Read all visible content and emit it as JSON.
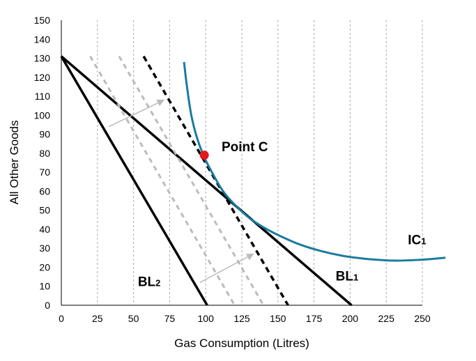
{
  "chart_data": {
    "type": "line",
    "title": "",
    "xlabel": "Gas Consumption (Litres)",
    "ylabel": "All Other Goods",
    "xlim": [
      0,
      250
    ],
    "ylim": [
      0,
      150
    ],
    "xticks": [
      0,
      25,
      50,
      75,
      100,
      125,
      150,
      175,
      200,
      225,
      250
    ],
    "yticks": [
      0,
      10,
      20,
      30,
      40,
      50,
      60,
      70,
      80,
      90,
      100,
      110,
      120,
      130,
      140,
      150
    ],
    "grid": "vertical dashed",
    "legend": "none",
    "lines": [
      {
        "id": "bl1",
        "points": [
          [
            0,
            131
          ],
          [
            201,
            0
          ]
        ],
        "style": "solid",
        "color": "#000000"
      },
      {
        "id": "bl2",
        "points": [
          [
            0,
            131
          ],
          [
            101,
            0
          ]
        ],
        "style": "solid",
        "color": "#000000"
      },
      {
        "id": "shift1",
        "points": [
          [
            20,
            131
          ],
          [
            120,
            0
          ]
        ],
        "style": "dashed",
        "color": "#bbbbbb"
      },
      {
        "id": "shift2",
        "points": [
          [
            40,
            131
          ],
          [
            140,
            0
          ]
        ],
        "style": "dashed",
        "color": "#bbbbbb"
      },
      {
        "id": "tangent",
        "points": [
          [
            57,
            131
          ],
          [
            157,
            0
          ]
        ],
        "style": "dashed",
        "color": "#000000"
      }
    ],
    "curves": [
      {
        "id": "ic1",
        "color": "#1a7b9e",
        "points": [
          [
            85,
            128
          ],
          [
            87,
            115
          ],
          [
            90,
            100
          ],
          [
            94,
            88
          ],
          [
            99,
            78
          ],
          [
            105,
            69
          ],
          [
            112,
            60
          ],
          [
            120,
            53
          ],
          [
            130,
            46
          ],
          [
            140,
            41
          ],
          [
            150,
            37
          ],
          [
            165,
            32
          ],
          [
            180,
            28.5
          ],
          [
            195,
            26
          ],
          [
            210,
            24.5
          ],
          [
            230,
            23.5
          ],
          [
            250,
            24
          ],
          [
            266,
            25
          ]
        ]
      }
    ],
    "arrows": [
      {
        "from": [
          33,
          94
        ],
        "to": [
          71,
          108
        ],
        "color": "#bbbbbb"
      },
      {
        "from": [
          96,
          12
        ],
        "to": [
          133,
          27
        ],
        "color": "#bbbbbb"
      }
    ],
    "marker": {
      "point": [
        99,
        79
      ],
      "color": "#e3191b"
    },
    "annotations": {
      "point_c": {
        "text": "Point C",
        "x": 111,
        "y": 81
      },
      "ic1": {
        "main": "IC",
        "sub": "1",
        "x": 240,
        "y": 32
      },
      "bl1": {
        "main": "BL",
        "sub": "1",
        "x": 190,
        "y": 13
      },
      "bl2": {
        "main": "BL",
        "sub": "2",
        "x": 53,
        "y": 10
      }
    }
  }
}
